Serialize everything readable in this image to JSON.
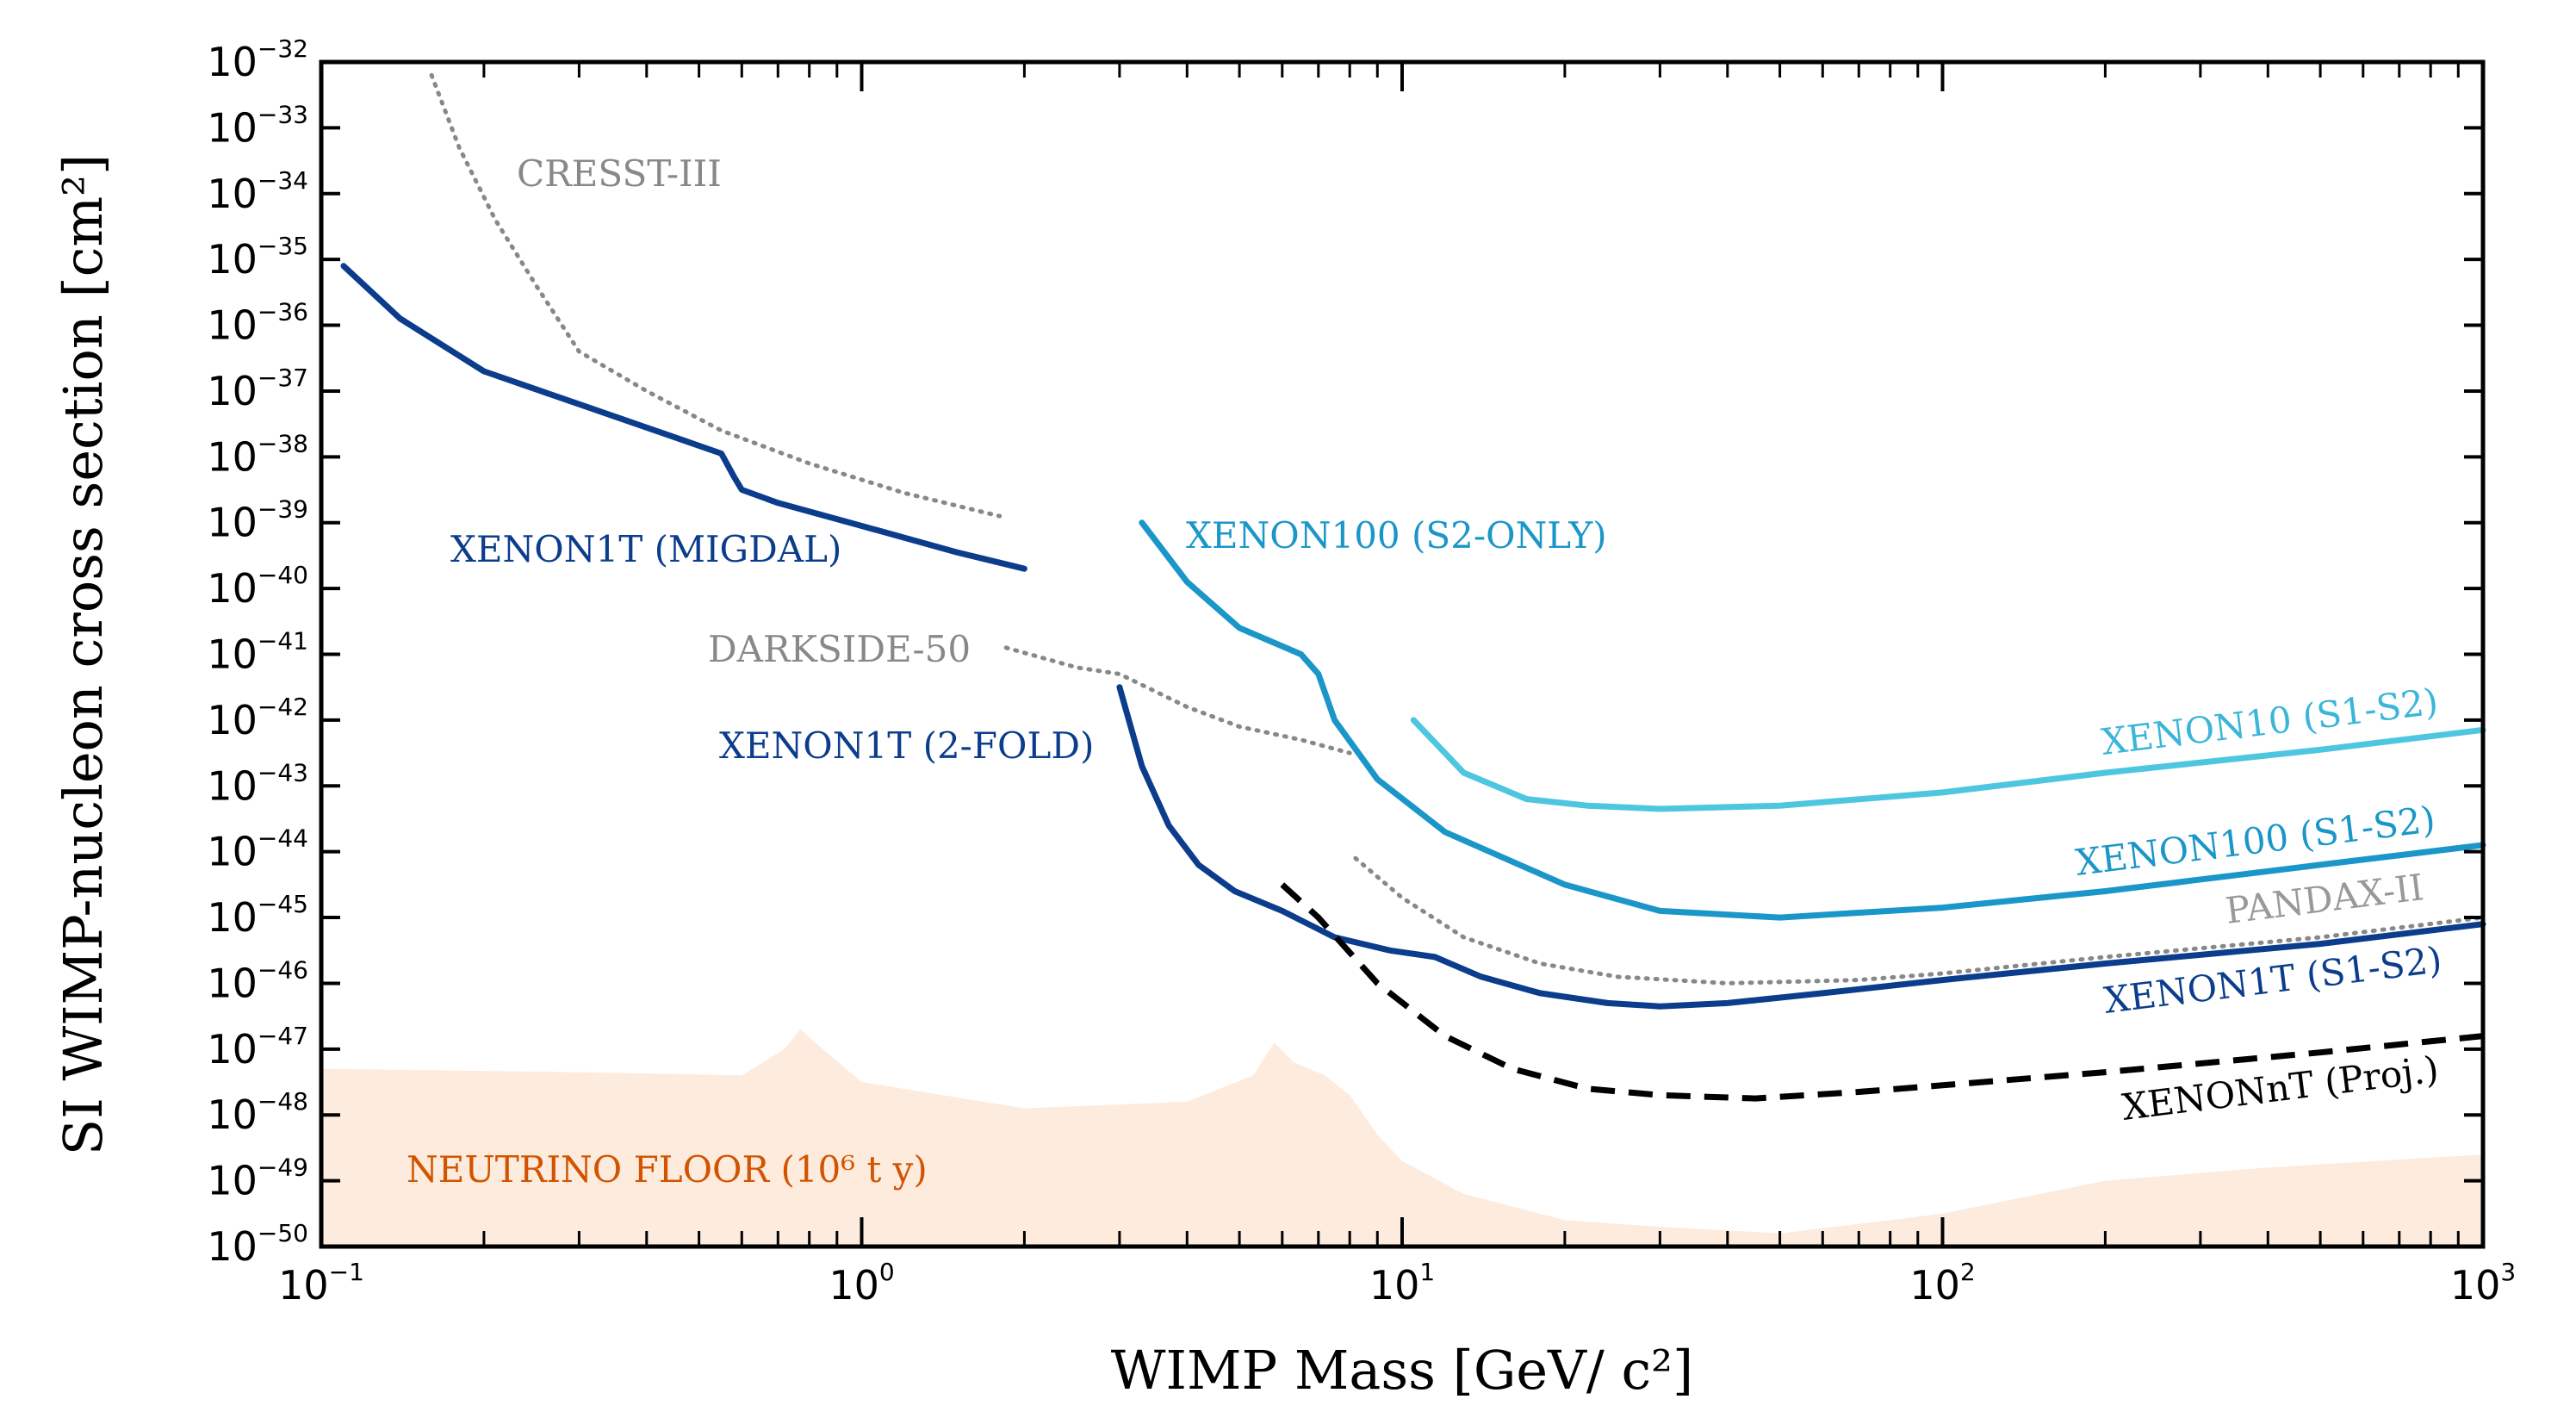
{
  "chart_data": {
    "type": "line",
    "xscale": "log",
    "yscale": "log",
    "xlabel": "WIMP Mass [GeV/ c²]",
    "ylabel": "SI WIMP-nucleon cross section [cm²]",
    "xlim": [
      0.1,
      1000
    ],
    "ylim": [
      1e-50,
      1e-32
    ],
    "x_major_ticks": [
      {
        "value": 0.1,
        "base": "10",
        "exp": "−1"
      },
      {
        "value": 1,
        "base": "10",
        "exp": "0"
      },
      {
        "value": 10,
        "base": "10",
        "exp": "1"
      },
      {
        "value": 100,
        "base": "10",
        "exp": "2"
      },
      {
        "value": 1000,
        "base": "10",
        "exp": "3"
      }
    ],
    "y_ticks": [
      {
        "value": -32,
        "base": "10",
        "exp": "−32"
      },
      {
        "value": -33,
        "base": "10",
        "exp": "−33"
      },
      {
        "value": -34,
        "base": "10",
        "exp": "−34"
      },
      {
        "value": -35,
        "base": "10",
        "exp": "−35"
      },
      {
        "value": -36,
        "base": "10",
        "exp": "−36"
      },
      {
        "value": -37,
        "base": "10",
        "exp": "−37"
      },
      {
        "value": -38,
        "base": "10",
        "exp": "−38"
      },
      {
        "value": -39,
        "base": "10",
        "exp": "−39"
      },
      {
        "value": -40,
        "base": "10",
        "exp": "−40"
      },
      {
        "value": -41,
        "base": "10",
        "exp": "−41"
      },
      {
        "value": -42,
        "base": "10",
        "exp": "−42"
      },
      {
        "value": -43,
        "base": "10",
        "exp": "−43"
      },
      {
        "value": -44,
        "base": "10",
        "exp": "−44"
      },
      {
        "value": -45,
        "base": "10",
        "exp": "−45"
      },
      {
        "value": -46,
        "base": "10",
        "exp": "−46"
      },
      {
        "value": -47,
        "base": "10",
        "exp": "−47"
      },
      {
        "value": -48,
        "base": "10",
        "exp": "−48"
      },
      {
        "value": -49,
        "base": "10",
        "exp": "−49"
      },
      {
        "value": -50,
        "base": "10",
        "exp": "−50"
      }
    ],
    "neutrino_floor": {
      "label": "NEUTRINO FLOOR (10⁶ t y)",
      "color": "#fdebdd",
      "label_color": "#d35400",
      "x": [
        0.1,
        0.3,
        0.6,
        0.72,
        0.77,
        0.82,
        1.0,
        2.0,
        4.0,
        5.3,
        5.8,
        6.3,
        7.2,
        8.0,
        9.0,
        10,
        13,
        20,
        30,
        50,
        80,
        100,
        200,
        400,
        1000
      ],
      "logy": [
        -47.3,
        -47.35,
        -47.4,
        -47.0,
        -46.7,
        -46.9,
        -47.5,
        -47.9,
        -47.8,
        -47.4,
        -46.9,
        -47.2,
        -47.4,
        -47.7,
        -48.3,
        -48.7,
        -49.2,
        -49.6,
        -49.7,
        -49.8,
        -49.6,
        -49.5,
        -49.0,
        -48.8,
        -48.6
      ]
    },
    "series": [
      {
        "name": "CRESST-III",
        "color": "#888888",
        "style": "dotted",
        "label_color": "#888888",
        "x": [
          0.16,
          0.18,
          0.21,
          0.25,
          0.3,
          0.4,
          0.55,
          0.8,
          1.2,
          1.8
        ],
        "logy": [
          -32.2,
          -33.3,
          -34.4,
          -35.4,
          -36.4,
          -37.0,
          -37.6,
          -38.1,
          -38.55,
          -38.9
        ]
      },
      {
        "name": "XENON1T (MIGDAL)",
        "color": "#0b3d8c",
        "style": "solid",
        "label_color": "#0b3d8c",
        "x": [
          0.11,
          0.14,
          0.2,
          0.3,
          0.45,
          0.55,
          0.58,
          0.6,
          0.7,
          1.0,
          1.5,
          2.0
        ],
        "logy": [
          -35.1,
          -35.9,
          -36.7,
          -37.2,
          -37.7,
          -37.95,
          -38.3,
          -38.5,
          -38.7,
          -39.05,
          -39.45,
          -39.7
        ]
      },
      {
        "name": "DARKSIDE-50",
        "color": "#888888",
        "style": "dotted",
        "label_color": "#888888",
        "x": [
          1.85,
          2.5,
          3.0,
          4.0,
          5.0,
          6.5,
          8.0
        ],
        "logy": [
          -40.9,
          -41.2,
          -41.3,
          -41.8,
          -42.1,
          -42.3,
          -42.5
        ]
      },
      {
        "name": "XENON1T (2-FOLD)",
        "color": "#0b3d8c",
        "style": "solid",
        "label_color": "#0b3d8c",
        "x": [
          3.0,
          3.3,
          3.7,
          4.2,
          4.9,
          6.0,
          7.5,
          9.5,
          11.5
        ],
        "logy": [
          -41.5,
          -42.7,
          -43.6,
          -44.2,
          -44.6,
          -44.9,
          -45.3,
          -45.5,
          -45.6
        ]
      },
      {
        "name": "XENON100 (S2-ONLY)",
        "color": "#1b96c8",
        "style": "solid",
        "label_color": "#1b96c8",
        "x": [
          3.3,
          4.0,
          5.0,
          6.5,
          7.0,
          7.5,
          9.0,
          12,
          20,
          30,
          50,
          100,
          200,
          500,
          1000
        ],
        "logy": [
          -39.0,
          -39.9,
          -40.6,
          -41.0,
          -41.3,
          -42.0,
          -42.9,
          -43.7,
          -44.5,
          -44.9,
          -45.0,
          -44.85,
          -44.6,
          -44.2,
          -43.9
        ]
      },
      {
        "name": "XENON10 (S1-S2)",
        "color": "#4fc6e0",
        "style": "solid",
        "label_color": "#3bb5d8",
        "x": [
          10.5,
          13,
          17,
          22,
          30,
          50,
          100,
          200,
          500,
          1000
        ],
        "logy": [
          -42.0,
          -42.8,
          -43.2,
          -43.3,
          -43.35,
          -43.3,
          -43.1,
          -42.8,
          -42.45,
          -42.15
        ]
      },
      {
        "name": "PANDAX-II",
        "color": "#888888",
        "style": "dotted",
        "label_color": "#999999",
        "x": [
          8.2,
          10,
          13,
          18,
          25,
          40,
          70,
          100,
          200,
          500,
          1000
        ],
        "logy": [
          -44.1,
          -44.7,
          -45.3,
          -45.7,
          -45.9,
          -46.0,
          -45.95,
          -45.85,
          -45.6,
          -45.3,
          -45.0
        ]
      },
      {
        "name": "XENON1T (S1-S2)",
        "color": "#0b3d8c",
        "style": "solid",
        "label_color": "#0b3d8c",
        "x": [
          11.5,
          14,
          18,
          24,
          30,
          40,
          60,
          100,
          200,
          500,
          1000
        ],
        "logy": [
          -45.6,
          -45.9,
          -46.15,
          -46.3,
          -46.35,
          -46.3,
          -46.15,
          -45.95,
          -45.7,
          -45.4,
          -45.1
        ]
      },
      {
        "name": "XENONnT (Proj.)",
        "color": "#000000",
        "style": "dashed",
        "label_color": "#000000",
        "x": [
          6.0,
          7.0,
          9.0,
          12,
          16,
          22,
          30,
          45,
          70,
          100,
          200,
          500,
          1000
        ],
        "logy": [
          -44.5,
          -45.0,
          -46.0,
          -46.8,
          -47.3,
          -47.6,
          -47.7,
          -47.75,
          -47.65,
          -47.55,
          -47.35,
          -47.05,
          -46.8
        ]
      }
    ]
  }
}
